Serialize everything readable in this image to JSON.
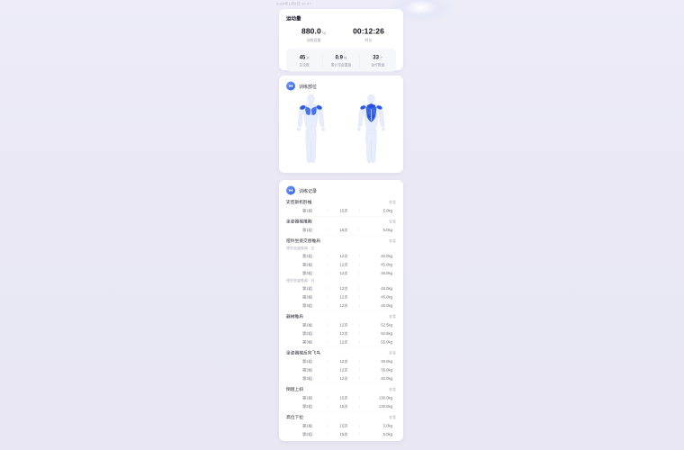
{
  "page": {
    "note": "2024年1月5日 10:37"
  },
  "summary": {
    "title": "运动量",
    "primary": [
      {
        "value": "880.0",
        "unit": "kg",
        "label": "训练容量"
      },
      {
        "value": "00:12:26",
        "unit": "",
        "label": "时长"
      }
    ],
    "stats": [
      {
        "value": "45",
        "unit": "次",
        "label": "总次数"
      },
      {
        "value": "0.9",
        "unit": "吨",
        "label": "累计举起重量"
      },
      {
        "value": "33",
        "unit": "个",
        "label": "动作数量"
      }
    ]
  },
  "muscles": {
    "title": "训练部位"
  },
  "records": {
    "title": "训练记录",
    "view_label": "查看",
    "sections": [
      {
        "name": "史密斯机卧推",
        "groups": [
          {
            "label": "",
            "rows": [
              {
                "set": "第1组",
                "reps": "15次",
                "weight": "5.0kg"
              }
            ]
          }
        ]
      },
      {
        "name": "坐姿器械推胸",
        "groups": [
          {
            "label": "",
            "rows": [
              {
                "set": "第1组",
                "reps": "15次",
                "weight": "5.0kg"
              }
            ]
          }
        ]
      },
      {
        "name": "哑铃坐姿交替推肩",
        "groups": [
          {
            "label": "哑铃坐姿推肩 · 左",
            "rows": [
              {
                "set": "第1组",
                "reps": "12次",
                "weight": "40.0kg"
              },
              {
                "set": "第2组",
                "reps": "12次",
                "weight": "45.0kg"
              },
              {
                "set": "第3组",
                "reps": "12次",
                "weight": "45.0kg"
              }
            ]
          },
          {
            "label": "哑铃坐姿推肩 · 右",
            "rows": [
              {
                "set": "第1组",
                "reps": "12次",
                "weight": "45.0kg"
              },
              {
                "set": "第2组",
                "reps": "12次",
                "weight": "45.0kg"
              },
              {
                "set": "第3组",
                "reps": "12次",
                "weight": "45.0kg"
              }
            ]
          }
        ]
      },
      {
        "name": "器械推肩",
        "groups": [
          {
            "label": "",
            "rows": [
              {
                "set": "第1组",
                "reps": "12次",
                "weight": "52.5kg"
              },
              {
                "set": "第2组",
                "reps": "12次",
                "weight": "52.5kg"
              },
              {
                "set": "第3组",
                "reps": "12次",
                "weight": "55.0kg"
              }
            ]
          }
        ]
      },
      {
        "name": "坐姿器械反向飞鸟",
        "groups": [
          {
            "label": "",
            "rows": [
              {
                "set": "第1组",
                "reps": "12次",
                "weight": "30.0kg"
              },
              {
                "set": "第2组",
                "reps": "12次",
                "weight": "35.0kg"
              },
              {
                "set": "第3组",
                "reps": "12次",
                "weight": "40.0kg"
              }
            ]
          }
        ]
      },
      {
        "name": "倒蹬上斜",
        "groups": [
          {
            "label": "",
            "rows": [
              {
                "set": "第1组",
                "reps": "15次",
                "weight": "130.0kg"
              },
              {
                "set": "第2组",
                "reps": "15次",
                "weight": "130.0kg"
              }
            ]
          }
        ]
      },
      {
        "name": "高位下拉",
        "groups": [
          {
            "label": "",
            "rows": [
              {
                "set": "第1组",
                "reps": "15次",
                "weight": "5.0kg"
              },
              {
                "set": "第2组",
                "reps": "15次",
                "weight": "5.0kg"
              }
            ]
          }
        ]
      }
    ]
  },
  "colors": {
    "accent_blue": "#2f5fe6",
    "highlight_blue": "#4a74ee",
    "silhouette": "#e8edfb"
  }
}
